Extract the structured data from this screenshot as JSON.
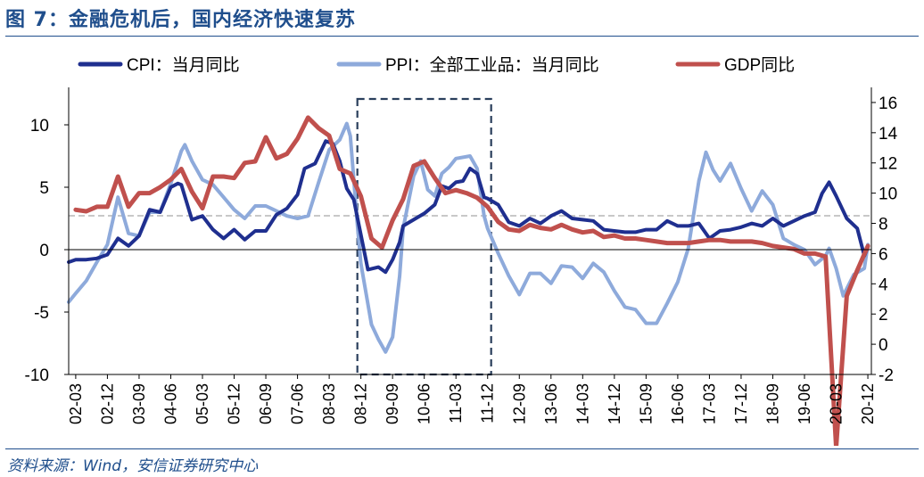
{
  "figure": {
    "title": "图 7：金融危机后，国内经济快速复苏",
    "source": "资料来源：Wind，安信证券研究中心"
  },
  "chart_data": {
    "type": "line",
    "legend": [
      {
        "name": "CPI：当月同比",
        "color": "#1f2f8f"
      },
      {
        "name": "PPI：全部工业品：当月同比",
        "color": "#8eaadb"
      },
      {
        "name": "GDP同比",
        "color": "#c0504d"
      }
    ],
    "legend_position": "top",
    "left_axis": {
      "ylim": [
        -10,
        13
      ],
      "ticks": [
        10,
        5,
        0,
        -5,
        -10
      ]
    },
    "right_axis": {
      "ylim": [
        -2,
        17
      ],
      "ticks": [
        16,
        14,
        12,
        10,
        8,
        6,
        4,
        2,
        0,
        -2
      ]
    },
    "x_ticks": [
      "02-03",
      "02-12",
      "03-09",
      "04-06",
      "05-03",
      "05-12",
      "06-09",
      "07-06",
      "08-03",
      "08-12",
      "09-09",
      "10-06",
      "11-03",
      "11-12",
      "12-09",
      "13-06",
      "14-03",
      "14-12",
      "15-09",
      "16-06",
      "17-03",
      "17-12",
      "18-09",
      "19-06",
      "20-03",
      "20-12"
    ],
    "reference_line_right": 8.5,
    "highlight_box": {
      "from": "08-11",
      "to": "12-01"
    },
    "series": [
      {
        "name": "CPI：当月同比",
        "axis": "left",
        "points": [
          [
            "2002-01",
            -1.0
          ],
          [
            "2002-03",
            -0.8
          ],
          [
            "2002-06",
            -0.8
          ],
          [
            "2002-09",
            -0.7
          ],
          [
            "2002-12",
            -0.4
          ],
          [
            "2003-03",
            0.9
          ],
          [
            "2003-06",
            0.3
          ],
          [
            "2003-09",
            1.1
          ],
          [
            "2003-12",
            3.2
          ],
          [
            "2004-03",
            3.0
          ],
          [
            "2004-06",
            5.0
          ],
          [
            "2004-08",
            5.3
          ],
          [
            "2004-09",
            5.2
          ],
          [
            "2004-12",
            2.4
          ],
          [
            "2005-03",
            2.7
          ],
          [
            "2005-06",
            1.6
          ],
          [
            "2005-09",
            0.9
          ],
          [
            "2005-12",
            1.6
          ],
          [
            "2006-03",
            0.8
          ],
          [
            "2006-06",
            1.5
          ],
          [
            "2006-09",
            1.5
          ],
          [
            "2006-12",
            2.8
          ],
          [
            "2007-03",
            3.3
          ],
          [
            "2007-06",
            4.4
          ],
          [
            "2007-08",
            6.5
          ],
          [
            "2007-11",
            6.9
          ],
          [
            "2008-02",
            8.7
          ],
          [
            "2008-04",
            8.5
          ],
          [
            "2008-06",
            7.1
          ],
          [
            "2008-08",
            4.9
          ],
          [
            "2008-10",
            4.0
          ],
          [
            "2008-12",
            1.2
          ],
          [
            "2009-02",
            -1.6
          ],
          [
            "2009-05",
            -1.4
          ],
          [
            "2009-07",
            -1.8
          ],
          [
            "2009-09",
            -0.8
          ],
          [
            "2009-11",
            0.6
          ],
          [
            "2009-12",
            1.9
          ],
          [
            "2010-03",
            2.4
          ],
          [
            "2010-06",
            2.9
          ],
          [
            "2010-09",
            3.6
          ],
          [
            "2010-11",
            5.1
          ],
          [
            "2011-01",
            4.9
          ],
          [
            "2011-03",
            5.4
          ],
          [
            "2011-05",
            5.5
          ],
          [
            "2011-07",
            6.5
          ],
          [
            "2011-09",
            6.1
          ],
          [
            "2011-11",
            4.2
          ],
          [
            "2011-12",
            4.1
          ],
          [
            "2012-03",
            3.6
          ],
          [
            "2012-06",
            2.2
          ],
          [
            "2012-09",
            1.9
          ],
          [
            "2012-12",
            2.5
          ],
          [
            "2013-03",
            2.1
          ],
          [
            "2013-06",
            2.7
          ],
          [
            "2013-09",
            3.1
          ],
          [
            "2013-12",
            2.5
          ],
          [
            "2014-03",
            2.4
          ],
          [
            "2014-06",
            2.3
          ],
          [
            "2014-09",
            1.6
          ],
          [
            "2014-12",
            1.5
          ],
          [
            "2015-03",
            1.4
          ],
          [
            "2015-06",
            1.4
          ],
          [
            "2015-09",
            1.6
          ],
          [
            "2015-12",
            1.6
          ],
          [
            "2016-03",
            2.3
          ],
          [
            "2016-06",
            1.9
          ],
          [
            "2016-09",
            1.9
          ],
          [
            "2016-12",
            2.1
          ],
          [
            "2017-03",
            0.9
          ],
          [
            "2017-06",
            1.5
          ],
          [
            "2017-09",
            1.6
          ],
          [
            "2017-12",
            1.8
          ],
          [
            "2018-03",
            2.1
          ],
          [
            "2018-06",
            1.9
          ],
          [
            "2018-09",
            2.5
          ],
          [
            "2018-12",
            1.9
          ],
          [
            "2019-03",
            2.3
          ],
          [
            "2019-06",
            2.7
          ],
          [
            "2019-09",
            3.0
          ],
          [
            "2019-11",
            4.5
          ],
          [
            "2020-01",
            5.4
          ],
          [
            "2020-03",
            4.3
          ],
          [
            "2020-06",
            2.5
          ],
          [
            "2020-09",
            1.7
          ],
          [
            "2020-11",
            -0.5
          ],
          [
            "2020-12",
            0.2
          ]
        ]
      },
      {
        "name": "PPI：全部工业品：当月同比",
        "axis": "left",
        "points": [
          [
            "2002-01",
            -4.2
          ],
          [
            "2002-03",
            -3.5
          ],
          [
            "2002-06",
            -2.5
          ],
          [
            "2002-09",
            -1.0
          ],
          [
            "2002-12",
            0.4
          ],
          [
            "2003-03",
            4.2
          ],
          [
            "2003-06",
            1.3
          ],
          [
            "2003-09",
            1.1
          ],
          [
            "2003-12",
            3.0
          ],
          [
            "2004-03",
            3.0
          ],
          [
            "2004-06",
            5.3
          ],
          [
            "2004-09",
            7.9
          ],
          [
            "2004-10",
            8.4
          ],
          [
            "2004-12",
            7.1
          ],
          [
            "2005-03",
            5.6
          ],
          [
            "2005-06",
            5.2
          ],
          [
            "2005-09",
            4.2
          ],
          [
            "2005-12",
            3.2
          ],
          [
            "2006-03",
            2.5
          ],
          [
            "2006-06",
            3.5
          ],
          [
            "2006-09",
            3.5
          ],
          [
            "2006-12",
            3.1
          ],
          [
            "2007-03",
            2.7
          ],
          [
            "2007-06",
            2.5
          ],
          [
            "2007-09",
            2.7
          ],
          [
            "2007-12",
            5.4
          ],
          [
            "2008-03",
            8.0
          ],
          [
            "2008-06",
            8.8
          ],
          [
            "2008-08",
            10.1
          ],
          [
            "2008-09",
            9.1
          ],
          [
            "2008-11",
            2.0
          ],
          [
            "2008-12",
            -1.1
          ],
          [
            "2009-03",
            -6.0
          ],
          [
            "2009-05",
            -7.2
          ],
          [
            "2009-07",
            -8.2
          ],
          [
            "2009-09",
            -7.0
          ],
          [
            "2009-11",
            -2.1
          ],
          [
            "2009-12",
            1.7
          ],
          [
            "2010-03",
            5.9
          ],
          [
            "2010-05",
            7.1
          ],
          [
            "2010-07",
            4.8
          ],
          [
            "2010-09",
            4.3
          ],
          [
            "2010-11",
            6.1
          ],
          [
            "2011-01",
            6.6
          ],
          [
            "2011-03",
            7.3
          ],
          [
            "2011-07",
            7.5
          ],
          [
            "2011-09",
            6.5
          ],
          [
            "2011-11",
            2.7
          ],
          [
            "2011-12",
            1.7
          ],
          [
            "2012-03",
            -0.3
          ],
          [
            "2012-06",
            -2.1
          ],
          [
            "2012-09",
            -3.6
          ],
          [
            "2012-12",
            -1.9
          ],
          [
            "2013-03",
            -1.9
          ],
          [
            "2013-06",
            -2.7
          ],
          [
            "2013-09",
            -1.3
          ],
          [
            "2013-12",
            -1.4
          ],
          [
            "2014-03",
            -2.3
          ],
          [
            "2014-06",
            -1.1
          ],
          [
            "2014-09",
            -1.8
          ],
          [
            "2014-12",
            -3.3
          ],
          [
            "2015-03",
            -4.6
          ],
          [
            "2015-06",
            -4.8
          ],
          [
            "2015-09",
            -5.9
          ],
          [
            "2015-12",
            -5.9
          ],
          [
            "2016-03",
            -4.3
          ],
          [
            "2016-06",
            -2.6
          ],
          [
            "2016-09",
            0.1
          ],
          [
            "2016-12",
            5.5
          ],
          [
            "2017-02",
            7.8
          ],
          [
            "2017-04",
            6.4
          ],
          [
            "2017-06",
            5.5
          ],
          [
            "2017-09",
            6.9
          ],
          [
            "2017-12",
            4.9
          ],
          [
            "2018-03",
            3.1
          ],
          [
            "2018-06",
            4.7
          ],
          [
            "2018-09",
            3.6
          ],
          [
            "2018-12",
            0.9
          ],
          [
            "2019-03",
            0.4
          ],
          [
            "2019-06",
            0.0
          ],
          [
            "2019-09",
            -1.2
          ],
          [
            "2019-12",
            -0.5
          ],
          [
            "2020-01",
            0.1
          ],
          [
            "2020-03",
            -1.5
          ],
          [
            "2020-05",
            -3.7
          ],
          [
            "2020-08",
            -2.0
          ],
          [
            "2020-11",
            -1.5
          ],
          [
            "2020-12",
            0.4
          ]
        ]
      },
      {
        "name": "GDP同比",
        "axis": "right",
        "points": [
          [
            "2002-03",
            8.9
          ],
          [
            "2002-06",
            8.8
          ],
          [
            "2002-09",
            9.1
          ],
          [
            "2002-12",
            9.1
          ],
          [
            "2003-03",
            11.1
          ],
          [
            "2003-06",
            9.1
          ],
          [
            "2003-09",
            10.0
          ],
          [
            "2003-12",
            10.0
          ],
          [
            "2004-03",
            10.4
          ],
          [
            "2004-06",
            10.9
          ],
          [
            "2004-09",
            11.6
          ],
          [
            "2004-12",
            10.1
          ],
          [
            "2005-03",
            9.0
          ],
          [
            "2005-06",
            11.1
          ],
          [
            "2005-09",
            11.1
          ],
          [
            "2005-12",
            11.0
          ],
          [
            "2006-03",
            12.0
          ],
          [
            "2006-06",
            12.1
          ],
          [
            "2006-09",
            13.7
          ],
          [
            "2006-12",
            12.3
          ],
          [
            "2007-03",
            12.6
          ],
          [
            "2007-06",
            13.6
          ],
          [
            "2007-09",
            15.0
          ],
          [
            "2007-12",
            14.3
          ],
          [
            "2008-03",
            13.8
          ],
          [
            "2008-06",
            11.6
          ],
          [
            "2008-09",
            11.3
          ],
          [
            "2008-12",
            9.8
          ],
          [
            "2009-03",
            7.0
          ],
          [
            "2009-06",
            6.4
          ],
          [
            "2009-09",
            8.2
          ],
          [
            "2009-12",
            9.6
          ],
          [
            "2010-03",
            11.8
          ],
          [
            "2010-06",
            12.1
          ],
          [
            "2010-09",
            11.0
          ],
          [
            "2010-12",
            10.0
          ],
          [
            "2011-03",
            10.2
          ],
          [
            "2011-06",
            10.0
          ],
          [
            "2011-09",
            9.7
          ],
          [
            "2011-12",
            9.1
          ],
          [
            "2012-03",
            8.1
          ],
          [
            "2012-06",
            7.6
          ],
          [
            "2012-09",
            7.5
          ],
          [
            "2012-12",
            7.9
          ],
          [
            "2013-03",
            7.7
          ],
          [
            "2013-06",
            7.6
          ],
          [
            "2013-09",
            7.9
          ],
          [
            "2013-12",
            7.6
          ],
          [
            "2014-03",
            7.4
          ],
          [
            "2014-06",
            7.5
          ],
          [
            "2014-09",
            7.1
          ],
          [
            "2014-12",
            7.2
          ],
          [
            "2015-03",
            7.0
          ],
          [
            "2015-06",
            7.0
          ],
          [
            "2015-09",
            6.9
          ],
          [
            "2015-12",
            6.8
          ],
          [
            "2016-03",
            6.7
          ],
          [
            "2016-06",
            6.7
          ],
          [
            "2016-09",
            6.7
          ],
          [
            "2016-12",
            6.8
          ],
          [
            "2017-03",
            6.9
          ],
          [
            "2017-06",
            6.9
          ],
          [
            "2017-09",
            6.8
          ],
          [
            "2017-12",
            6.8
          ],
          [
            "2018-03",
            6.8
          ],
          [
            "2018-06",
            6.7
          ],
          [
            "2018-09",
            6.5
          ],
          [
            "2018-12",
            6.4
          ],
          [
            "2019-03",
            6.3
          ],
          [
            "2019-06",
            6.0
          ],
          [
            "2019-09",
            6.0
          ],
          [
            "2019-12",
            5.8
          ],
          [
            "2020-03",
            -6.8
          ],
          [
            "2020-06",
            3.2
          ],
          [
            "2020-09",
            4.9
          ],
          [
            "2020-12",
            6.5
          ]
        ]
      }
    ]
  }
}
